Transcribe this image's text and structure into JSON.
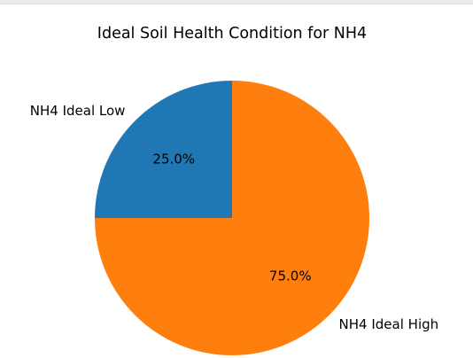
{
  "chart_data": {
    "type": "pie",
    "title": "Ideal Soil Health Condition for NH4",
    "slices": [
      {
        "label": "NH4 Ideal Low",
        "value": 25.0,
        "pct_label": "25.0%",
        "color": "#1f77b4"
      },
      {
        "label": "NH4 Ideal High",
        "value": 75.0,
        "pct_label": "75.0%",
        "color": "#ff7f0e"
      }
    ],
    "start_angle_deg": 90,
    "direction": "counterclockwise",
    "legend": "none"
  }
}
